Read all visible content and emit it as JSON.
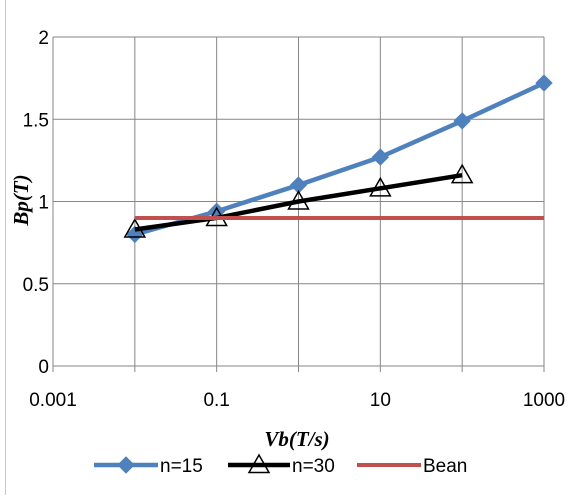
{
  "chart_data": {
    "type": "line",
    "title": "",
    "xlabel": "Vb(T/s)",
    "ylabel": "Bp(T)",
    "x_scale": "log",
    "xlim": [
      0.001,
      1000
    ],
    "ylim": [
      0,
      2
    ],
    "x_ticks": [
      "0.001",
      "0.1",
      "10",
      "1000"
    ],
    "y_ticks": [
      "0",
      "0.5",
      "1",
      "1.5",
      "2"
    ],
    "grid": true,
    "legend_position": "bottom",
    "series": [
      {
        "name": "n=15",
        "color": "#4f81bd",
        "marker": "diamond",
        "x": [
          0.01,
          0.1,
          1,
          10,
          100,
          1000
        ],
        "y": [
          0.8,
          0.94,
          1.1,
          1.27,
          1.49,
          1.72
        ]
      },
      {
        "name": "n=30",
        "color": "#000000",
        "marker": "triangle-open",
        "x": [
          0.01,
          0.1,
          1,
          10,
          100
        ],
        "y": [
          0.83,
          0.9,
          1.0,
          1.08,
          1.16
        ]
      },
      {
        "name": "Bean",
        "color": "#c0504d",
        "marker": "none",
        "x": [
          0.01,
          1000
        ],
        "y": [
          0.9,
          0.9
        ]
      }
    ]
  }
}
